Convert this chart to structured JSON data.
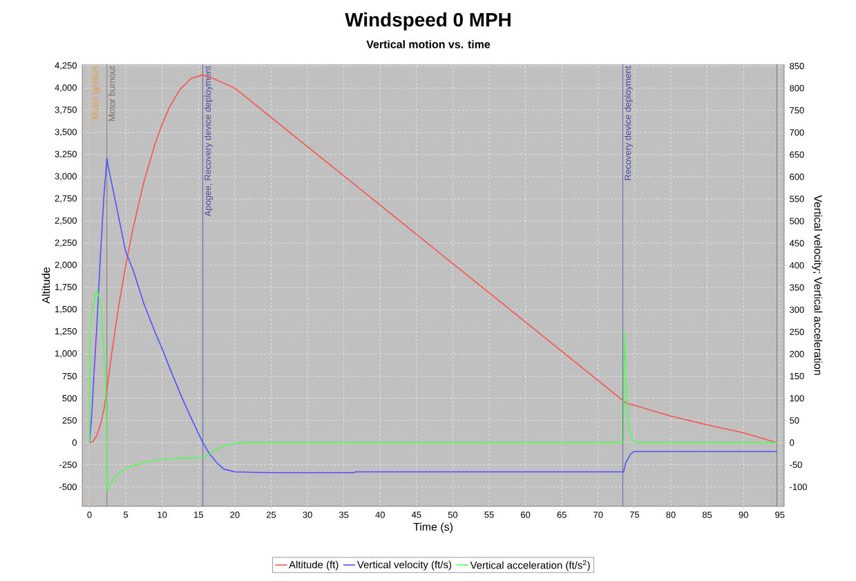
{
  "chart_data": {
    "type": "line",
    "title": "Windspeed 0 MPH",
    "subtitle": "Vertical motion vs. time",
    "xlabel": "Time (s)",
    "ylabel": "Altitude",
    "y2label": "Vertical velocity; Vertical acceleration",
    "xlim": [
      -1,
      95.6
    ],
    "xticks": [
      0,
      5,
      10,
      15,
      20,
      25,
      30,
      35,
      40,
      45,
      50,
      55,
      60,
      65,
      70,
      75,
      80,
      85,
      90,
      95
    ],
    "ylim": [
      -720,
      4270
    ],
    "yticks": [
      -500,
      -250,
      0,
      250,
      500,
      750,
      {
        "value": 1000,
        "label": "1,000"
      },
      {
        "value": 1250,
        "label": "1,250"
      },
      {
        "value": 1500,
        "label": "1,500"
      },
      {
        "value": 1750,
        "label": "1,750"
      },
      {
        "value": 2000,
        "label": "2,000"
      },
      {
        "value": 2250,
        "label": "2,250"
      },
      {
        "value": 2500,
        "label": "2,500"
      },
      {
        "value": 2750,
        "label": "2,750"
      },
      {
        "value": 3000,
        "label": "3,000"
      },
      {
        "value": 3250,
        "label": "3,250"
      },
      {
        "value": 3500,
        "label": "3,500"
      },
      {
        "value": 3750,
        "label": "3,750"
      },
      {
        "value": 4000,
        "label": "4,000"
      },
      {
        "value": 4250,
        "label": "4,250"
      }
    ],
    "y2lim": [
      -144,
      854
    ],
    "y2ticks": [
      -100,
      -50,
      0,
      50,
      100,
      150,
      200,
      250,
      300,
      350,
      400,
      450,
      500,
      550,
      600,
      650,
      700,
      750,
      800,
      850
    ],
    "grid": true,
    "legend": "bottom",
    "series": [
      {
        "name": "Altitude (ft)",
        "color": "#ff5050",
        "x": [
          0,
          0.5,
          1,
          1.5,
          2,
          2.4,
          3,
          4,
          5,
          6,
          7.5,
          9,
          10,
          11,
          12.5,
          14,
          15.6,
          17,
          20,
          30,
          40,
          50,
          60,
          70,
          73.4,
          74,
          75,
          80,
          85,
          90,
          94.6
        ],
        "values": [
          0,
          15,
          80,
          200,
          380,
          600,
          970,
          1530,
          2010,
          2420,
          2945,
          3365,
          3595,
          3785,
          3990,
          4110,
          4150,
          4110,
          4000,
          3340,
          2680,
          2020,
          1360,
          700,
          475,
          440,
          420,
          300,
          200,
          110,
          0
        ]
      },
      {
        "name": "Vertical velocity (ft/s)",
        "color": "#5050ff",
        "axis": "y2",
        "x": [
          0,
          0.3,
          0.6,
          1,
          1.5,
          2,
          2.4,
          2.5,
          3,
          4,
          5,
          6,
          7.5,
          9,
          10,
          11,
          12.5,
          14,
          15.6,
          16.5,
          17.5,
          18.5,
          20,
          25,
          36.4,
          36.6,
          50,
          73.5,
          73.8,
          74.5,
          75,
          85,
          94.6
        ],
        "values": [
          0,
          60,
          150,
          260,
          420,
          560,
          642,
          630,
          590,
          510,
          430,
          390,
          313,
          250,
          212,
          170,
          110,
          55,
          0,
          -25,
          -45,
          -60,
          -66,
          -68,
          -68,
          -66,
          -66,
          -66,
          -45,
          -25,
          -20,
          -20,
          -20
        ]
      },
      {
        "name": "Vertical acceleration (ft/s$^{2}$)",
        "color": "#50ff50",
        "axis": "y2",
        "x": [
          0,
          0.05,
          0.2,
          0.5,
          1,
          1.5,
          2,
          2.3,
          2.4,
          2.45,
          3,
          4,
          5,
          7.5,
          10,
          12.5,
          15.6,
          16.5,
          17.5,
          19,
          20,
          21,
          73.5,
          73.6,
          73.8,
          74.2,
          74.6,
          75,
          94.6
        ],
        "values": [
          0,
          250,
          280,
          310,
          345,
          320,
          200,
          90,
          -108,
          -108,
          -90,
          -70,
          -58,
          -45,
          -38,
          -35,
          -34,
          -25,
          -15,
          -5,
          -2,
          0,
          0,
          250,
          150,
          40,
          10,
          0,
          0
        ]
      }
    ],
    "ref_lines": [
      {
        "axis": "x",
        "value": 0.1,
        "label": "Motor ignition",
        "color": "#e89a40",
        "line_style": "dashed"
      },
      {
        "axis": "x",
        "value": 2.4,
        "label": "Motor burnout",
        "color": "#7a6a5e"
      },
      {
        "axis": "x",
        "value": 15.6,
        "label": "Apogee, Recovery device deployment",
        "color": "#4848a0"
      },
      {
        "axis": "x",
        "value": 73.4,
        "label": "Recovery device deployment",
        "color": "#4848a0"
      },
      {
        "axis": "x",
        "value": 94.6,
        "color": "#606060"
      }
    ]
  }
}
